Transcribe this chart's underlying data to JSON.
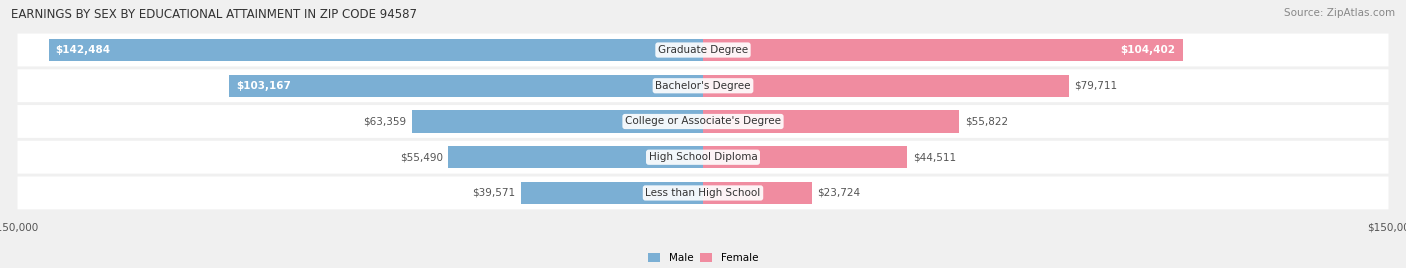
{
  "title": "EARNINGS BY SEX BY EDUCATIONAL ATTAINMENT IN ZIP CODE 94587",
  "source": "Source: ZipAtlas.com",
  "categories": [
    "Less than High School",
    "High School Diploma",
    "College or Associate's Degree",
    "Bachelor's Degree",
    "Graduate Degree"
  ],
  "male_values": [
    39571,
    55490,
    63359,
    103167,
    142484
  ],
  "female_values": [
    23724,
    44511,
    55822,
    79711,
    104402
  ],
  "male_color": "#7bafd4",
  "female_color": "#f08ca0",
  "max_value": 150000,
  "bg_color": "#f0f0f0",
  "title_fontsize": 8.5,
  "source_fontsize": 7.5,
  "label_fontsize": 7.5
}
